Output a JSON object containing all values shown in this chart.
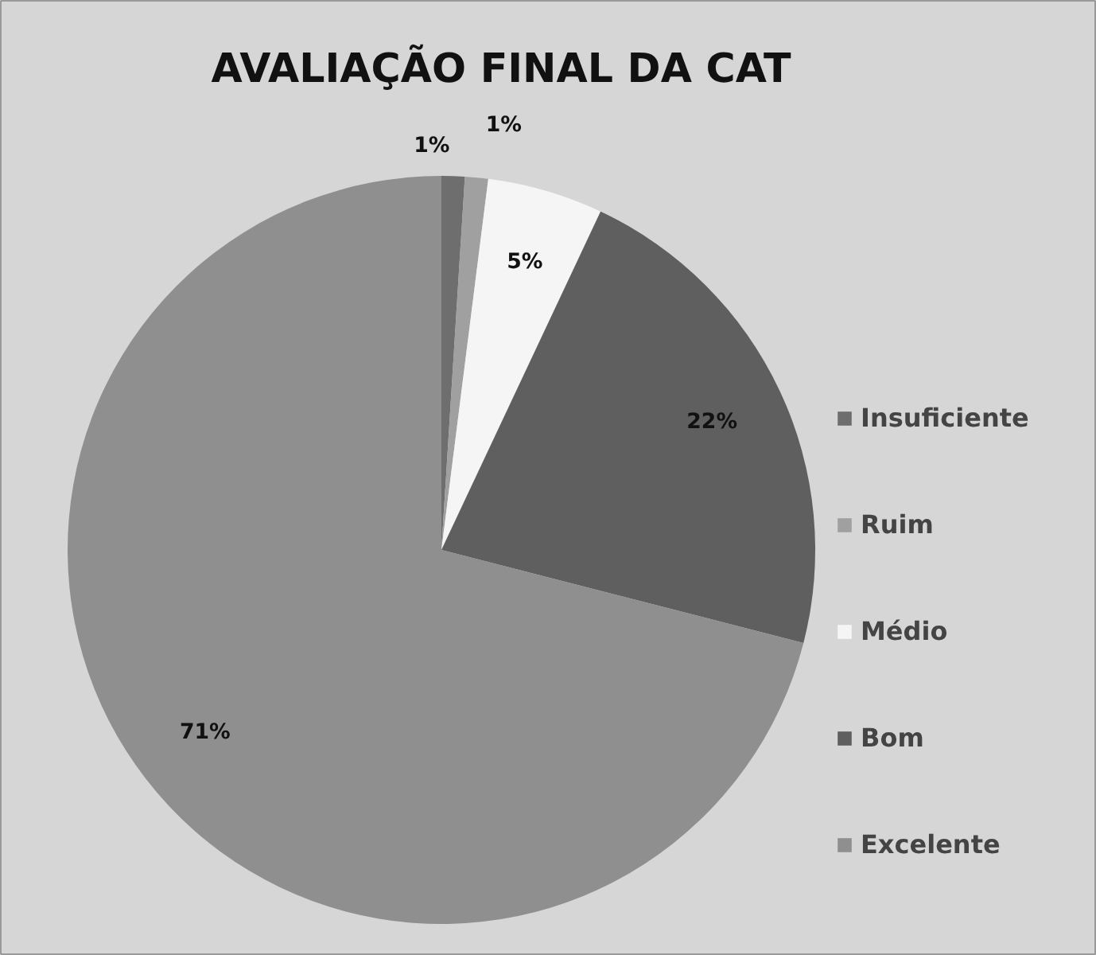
{
  "chart_data": {
    "type": "pie",
    "title": "AVALIAÇÃO FINAL DA CAT",
    "categories": [
      "Insuficiente",
      "Ruim",
      "Médio",
      "Bom",
      "Excelente"
    ],
    "values": [
      1,
      1,
      5,
      22,
      71
    ],
    "value_labels": [
      "1%",
      "1%",
      "5%",
      "22%",
      "71%"
    ],
    "colors": [
      "#6e6e6e",
      "#a0a0a0",
      "#f5f5f5",
      "#5f5f5f",
      "#8f8f8f"
    ],
    "legend": "right"
  }
}
